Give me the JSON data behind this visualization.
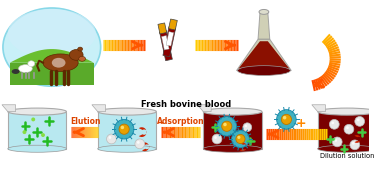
{
  "bg_color": "#ffffff",
  "title": "Fresh bovine blood",
  "label_elution": "Elution",
  "label_adsorption": "Adsorption",
  "label_dilution": "Dilution solution",
  "cow_oval_color": "#c8f0f8",
  "cow_oval_edge": "#88d8e8",
  "grass_color": "#5aaa2a",
  "sky_color": "#a8e0f8",
  "cow_brown": "#8B4010",
  "cow_dark": "#5c2800",
  "tube_body": "#8b0000",
  "tube_cap": "#e8a000",
  "flask_body": "#8b1000",
  "flask_neck": "#c8c8aa",
  "beaker_light": "#b8e8f0",
  "beaker_dark": "#7a0000",
  "beaker_rim": "#d8d8d8",
  "np_shell": "#40b0c0",
  "np_core": "#e8a000",
  "white_sphere": "#e0e0e0",
  "crescent_color": "#cc2200",
  "cross_color": "#22bb22",
  "small_dot_color": "#88cc44",
  "arrow_orange": "#ff5500",
  "arrow_yellow": "#ffcc00",
  "label_arrow_color": "#dd4400",
  "plus_color": "#ff8800"
}
